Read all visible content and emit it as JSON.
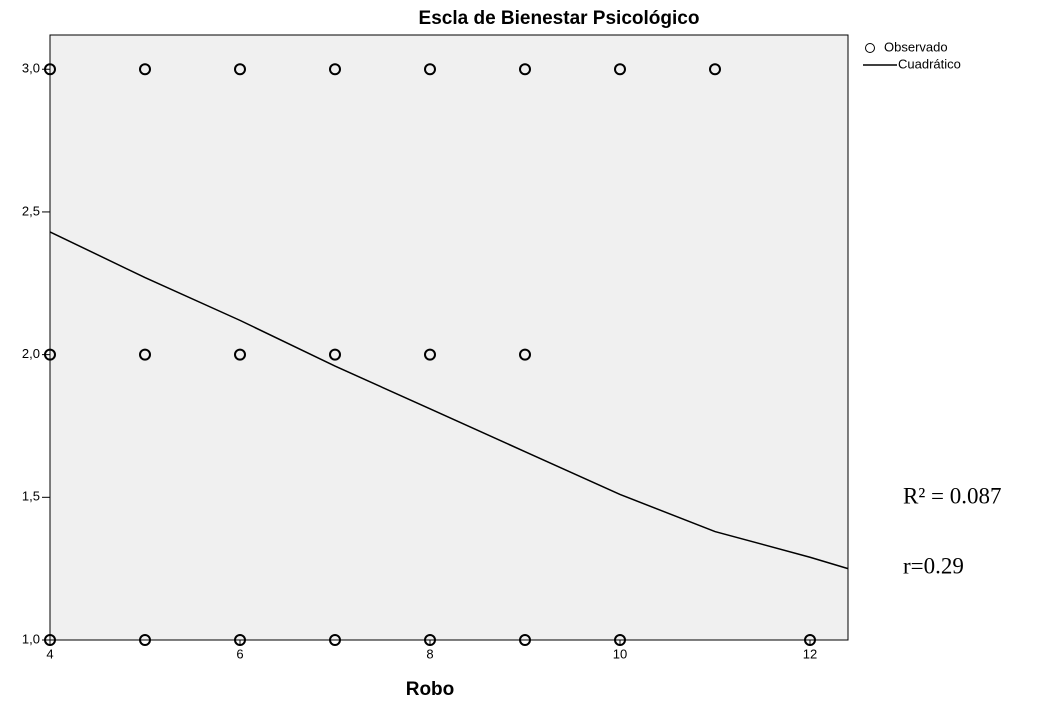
{
  "chart_data": {
    "type": "scatter",
    "title": "Escla de Bienestar Psicológico",
    "x_label": "Robo",
    "series": [
      {
        "name": "Observado",
        "color": "#000000",
        "x": [
          4,
          5,
          6,
          7,
          8,
          9,
          10,
          11,
          4,
          5,
          6,
          7,
          8,
          9,
          4,
          5,
          6,
          7,
          8,
          9,
          10,
          12
        ],
        "values": [
          3,
          3,
          3,
          3,
          3,
          3,
          3,
          3,
          2,
          2,
          2,
          2,
          2,
          2,
          1,
          1,
          1,
          1,
          1,
          1,
          1,
          1
        ]
      },
      {
        "name": "Cuadrático",
        "color": "#000000",
        "line": true,
        "x": [
          4,
          5,
          6,
          7,
          8,
          9,
          10,
          11,
          12,
          12.4
        ],
        "values": [
          2.43,
          2.27,
          2.12,
          1.96,
          1.81,
          1.66,
          1.51,
          1.38,
          1.29,
          1.25
        ]
      }
    ],
    "xlim": [
      4,
      12.4
    ],
    "xticks": [
      4,
      6,
      8,
      10,
      12
    ],
    "ylim": [
      1,
      3.12
    ],
    "yticks": [
      {
        "value": 1,
        "label": "1,0"
      },
      {
        "value": 1.5,
        "label": "1,5"
      },
      {
        "value": 2,
        "label": "2,0"
      },
      {
        "value": 2.5,
        "label": "2,5"
      },
      {
        "value": 3,
        "label": "3,0"
      }
    ],
    "legend": "top-right",
    "annotations": [
      "R² = 0.087",
      "r=0.29"
    ]
  }
}
